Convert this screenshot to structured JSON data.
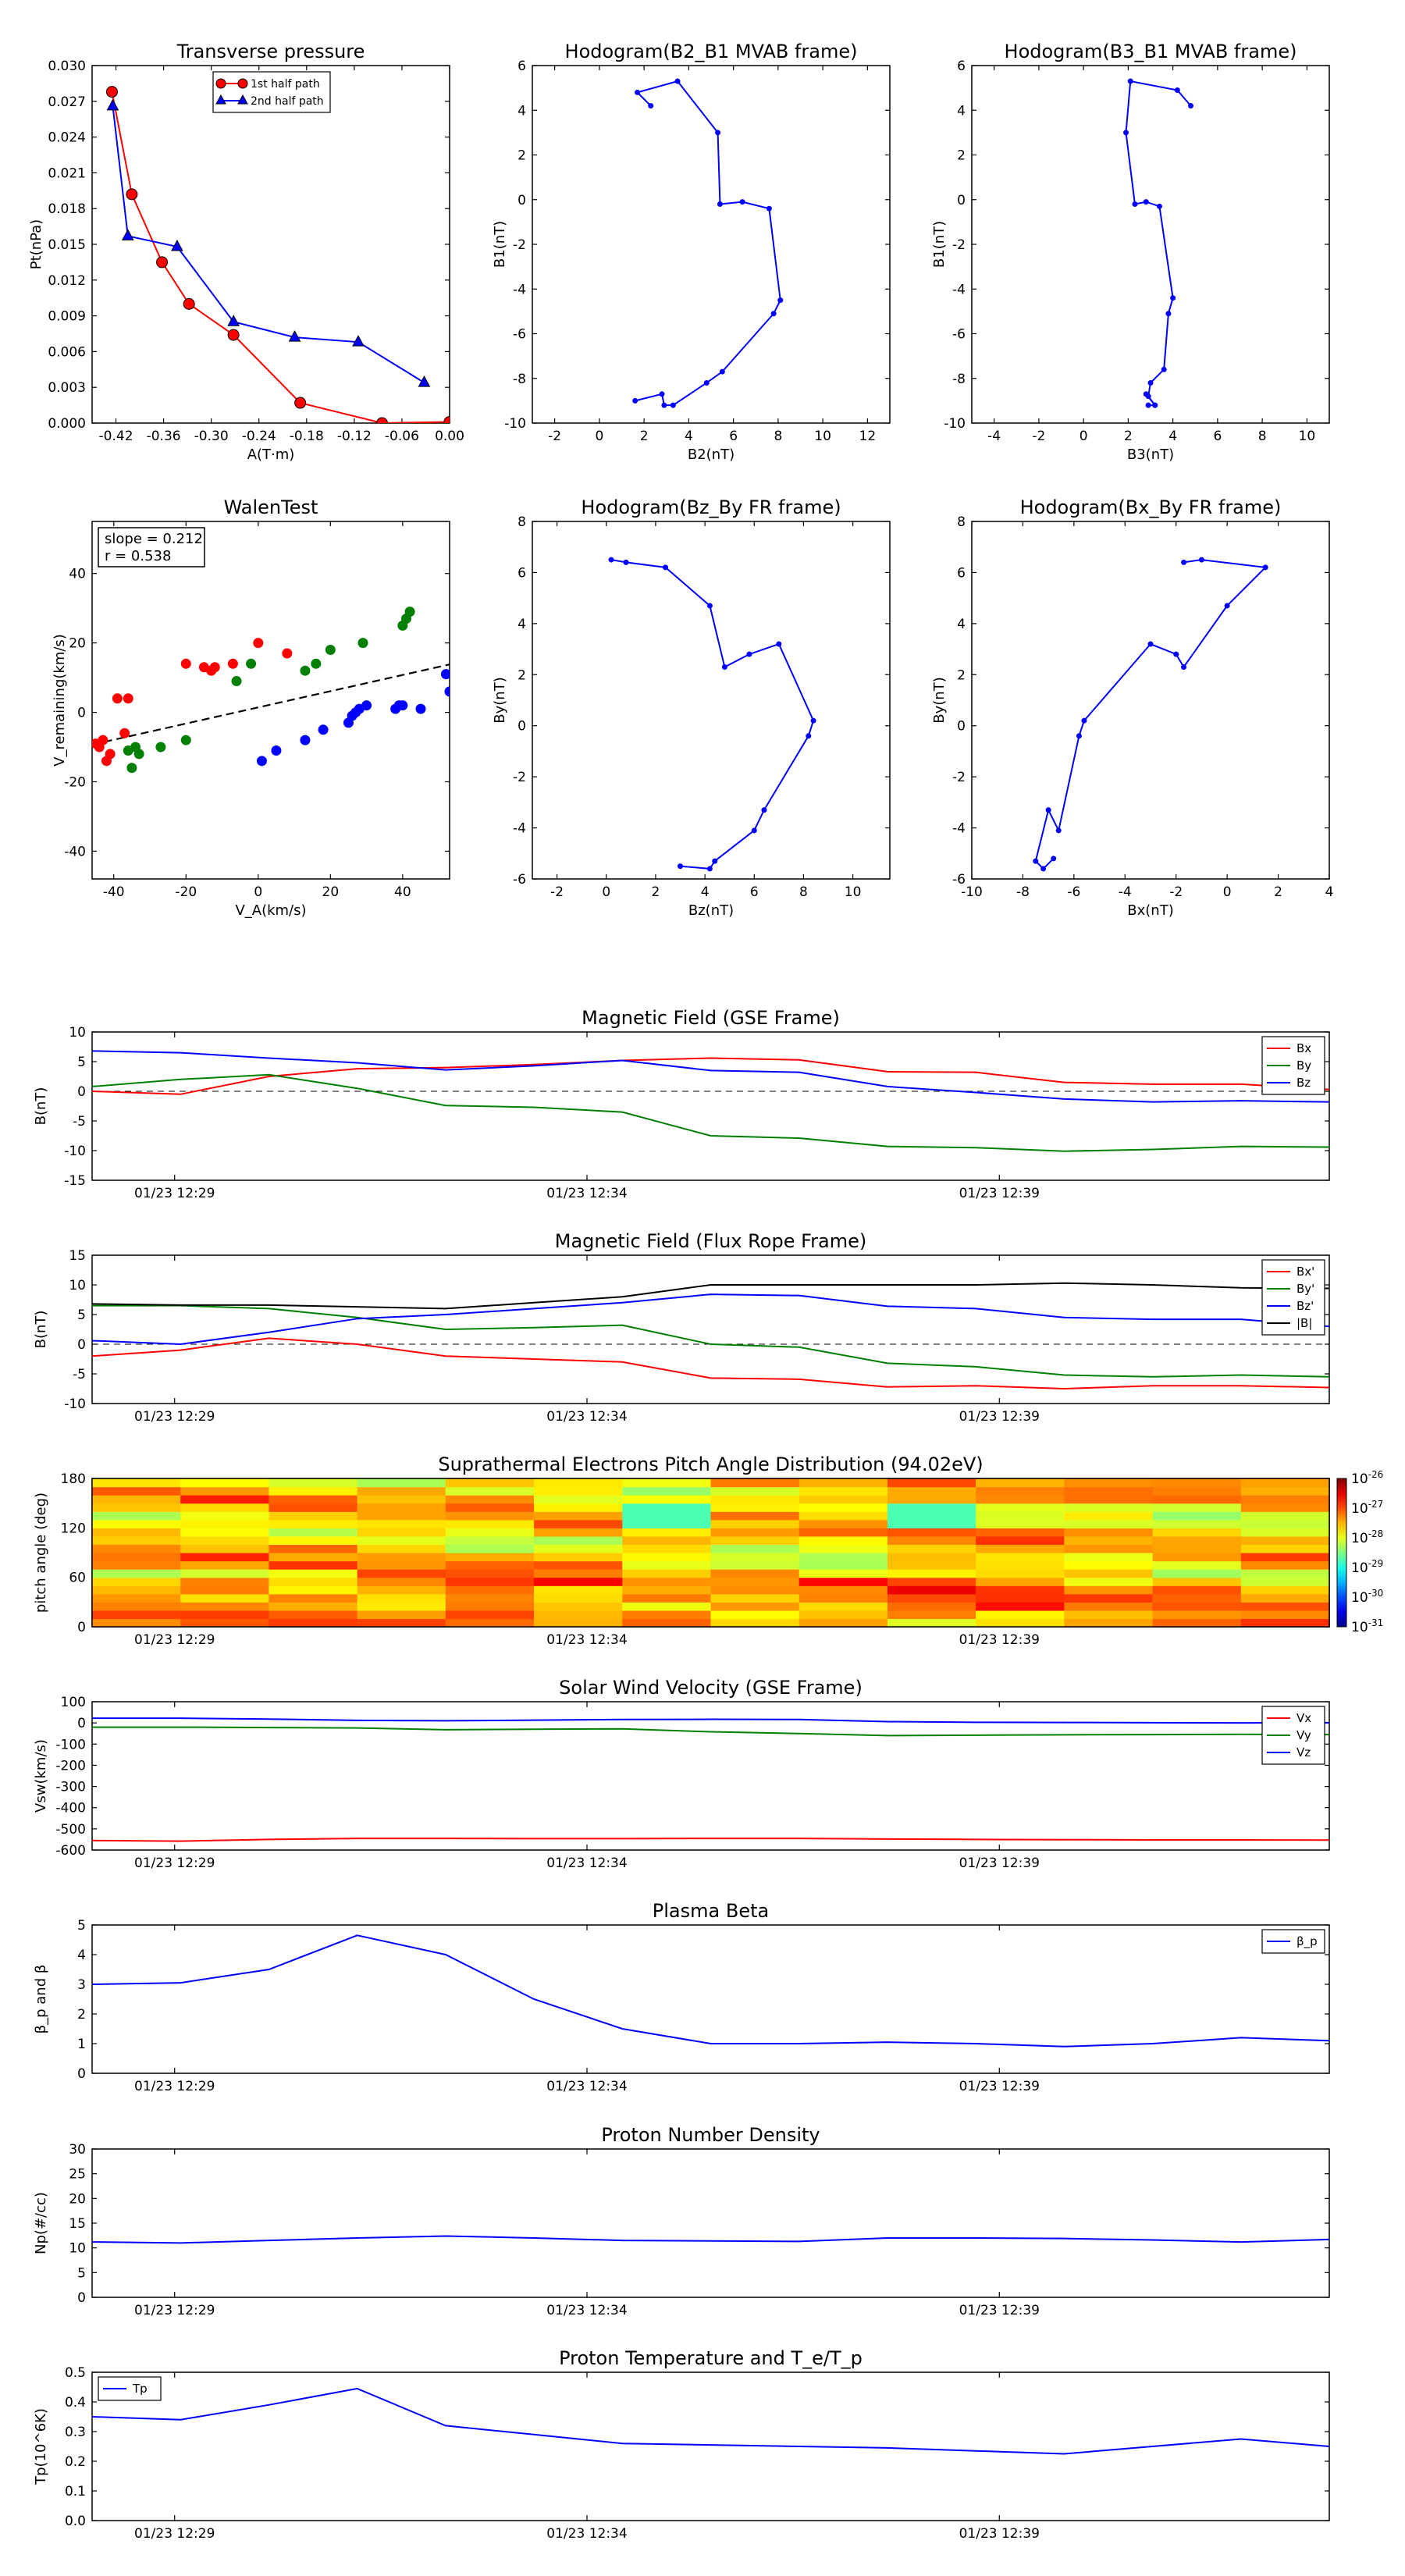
{
  "chart_data": [
    {
      "id": "transverse-pressure",
      "type": "line",
      "title": "Transverse pressure",
      "xlabel": "A(T·m)",
      "ylabel": "Pt(nPa)",
      "xlim": [
        -0.45,
        0.0
      ],
      "ylim": [
        0.0,
        0.03
      ],
      "xticks": [
        -0.42,
        -0.36,
        -0.3,
        -0.24,
        -0.18,
        -0.12,
        -0.06,
        0.0
      ],
      "yticks": [
        0.0,
        0.003,
        0.006,
        0.009,
        0.012,
        0.015,
        0.018,
        0.021,
        0.024,
        0.027,
        0.03
      ],
      "legend_loc": "top-center",
      "series": [
        {
          "name": "1st half path",
          "color": "#ff0000",
          "marker": "circle",
          "x": [
            -0.425,
            -0.4,
            -0.362,
            -0.328,
            -0.272,
            -0.188,
            -0.085,
            0.0
          ],
          "y": [
            0.0278,
            0.0192,
            0.0135,
            0.01,
            0.0074,
            0.0017,
            0.0,
            0.0001
          ]
        },
        {
          "name": "2nd half path",
          "color": "#0000ff",
          "marker": "triangle",
          "x": [
            -0.424,
            -0.405,
            -0.343,
            -0.272,
            -0.195,
            -0.115,
            -0.032
          ],
          "y": [
            0.0266,
            0.0157,
            0.0148,
            0.0085,
            0.0072,
            0.0068,
            0.0034
          ]
        }
      ]
    },
    {
      "id": "hodogram-b2-b1",
      "type": "line",
      "title": "Hodogram(B2_B1 MVAB frame)",
      "xlabel": "B2(nT)",
      "ylabel": "B1(nT)",
      "xlim": [
        -3,
        13
      ],
      "ylim": [
        -10,
        6
      ],
      "xticks": [
        -2,
        0,
        2,
        4,
        6,
        8,
        10,
        12
      ],
      "yticks": [
        -10,
        -8,
        -6,
        -4,
        -2,
        0,
        2,
        4,
        6
      ],
      "series": [
        {
          "name": "hodogram",
          "color": "#0000ff",
          "marker": "dot",
          "x": [
            2.3,
            1.7,
            3.5,
            5.3,
            5.4,
            6.4,
            7.6,
            8.1,
            7.8,
            5.5,
            4.8,
            3.3,
            2.9,
            2.8,
            1.6
          ],
          "y": [
            4.2,
            4.8,
            5.3,
            3.0,
            -0.2,
            -0.1,
            -0.4,
            -4.5,
            -5.1,
            -7.7,
            -8.2,
            -9.2,
            -9.2,
            -8.7,
            -9.0
          ]
        }
      ]
    },
    {
      "id": "hodogram-b3-b1",
      "type": "line",
      "title": "Hodogram(B3_B1 MVAB frame)",
      "xlabel": "B3(nT)",
      "ylabel": "B1(nT)",
      "xlim": [
        -5,
        11
      ],
      "ylim": [
        -10,
        6
      ],
      "xticks": [
        -4,
        -2,
        0,
        2,
        4,
        6,
        8,
        10
      ],
      "yticks": [
        -10,
        -8,
        -6,
        -4,
        -2,
        0,
        2,
        4,
        6
      ],
      "series": [
        {
          "name": "hodogram",
          "color": "#0000ff",
          "marker": "dot",
          "x": [
            4.8,
            4.2,
            2.1,
            1.9,
            2.3,
            2.8,
            3.4,
            4.0,
            3.8,
            3.6,
            3.0,
            2.9,
            3.2,
            2.8,
            3.2,
            2.9
          ],
          "y": [
            4.2,
            4.9,
            5.3,
            3.0,
            -0.2,
            -0.1,
            -0.3,
            -4.4,
            -5.1,
            -7.6,
            -8.2,
            -8.8,
            -9.2,
            -8.7,
            -9.2,
            -9.2
          ]
        }
      ]
    },
    {
      "id": "walen-test",
      "type": "scatter",
      "title": "WalenTest",
      "xlabel": "V_A(km/s)",
      "ylabel": "V_remaining(km/s)",
      "xlim": [
        -46,
        53
      ],
      "ylim": [
        -48,
        55
      ],
      "xticks": [
        -40,
        -20,
        0,
        20,
        40
      ],
      "yticks": [
        -40,
        -20,
        0,
        20,
        40
      ],
      "annotation": {
        "slope": "slope = 0.212",
        "r": "r = 0.538"
      },
      "fit_line": {
        "slope": 0.212,
        "x": [
          -46,
          53
        ],
        "y": [
          -9.3,
          13.8
        ],
        "color": "#000000",
        "style": "dashed"
      },
      "series": [
        {
          "name": "red",
          "color": "#ff0000",
          "x": [
            -45,
            -44,
            -43,
            -42,
            -41,
            -39,
            -37,
            -36,
            -20,
            -15,
            -13,
            -12,
            -7,
            0,
            8
          ],
          "y": [
            -9,
            -10,
            -8,
            -14,
            -12,
            4,
            -6,
            4,
            14,
            13,
            12,
            13,
            14,
            20,
            17
          ]
        },
        {
          "name": "green",
          "color": "#008000",
          "x": [
            -36,
            -35,
            -34,
            -33,
            -27,
            -20,
            -6,
            -2,
            13,
            16,
            20,
            29,
            40,
            41,
            42
          ],
          "y": [
            -11,
            -16,
            -10,
            -12,
            -10,
            -8,
            9,
            14,
            12,
            14,
            18,
            20,
            25,
            27,
            29
          ]
        },
        {
          "name": "blue",
          "color": "#0000ff",
          "x": [
            1,
            5,
            13,
            18,
            25,
            26,
            27,
            28,
            30,
            38,
            39,
            40,
            45,
            52,
            53
          ],
          "y": [
            -14,
            -11,
            -8,
            -5,
            -3,
            -1,
            0,
            1,
            2,
            1,
            2,
            2,
            1,
            11,
            6
          ]
        }
      ]
    },
    {
      "id": "hodogram-bz-by",
      "type": "line",
      "title": "Hodogram(Bz_By FR frame)",
      "xlabel": "Bz(nT)",
      "ylabel": "By(nT)",
      "xlim": [
        -3,
        11.5
      ],
      "ylim": [
        -6,
        8
      ],
      "xticks": [
        -2,
        0,
        2,
        4,
        6,
        8,
        10
      ],
      "yticks": [
        -6,
        -4,
        -2,
        0,
        2,
        4,
        6,
        8
      ],
      "series": [
        {
          "name": "hodogram",
          "color": "#0000ff",
          "marker": "dot",
          "x": [
            0.2,
            0.8,
            2.4,
            4.2,
            4.8,
            5.8,
            7.0,
            8.4,
            8.2,
            6.4,
            6.0,
            4.4,
            4.2,
            3.0
          ],
          "y": [
            6.5,
            6.4,
            6.2,
            4.7,
            2.3,
            2.8,
            3.2,
            0.2,
            -0.4,
            -3.3,
            -4.1,
            -5.3,
            -5.6,
            -5.5
          ]
        }
      ]
    },
    {
      "id": "hodogram-bx-by",
      "type": "line",
      "title": "Hodogram(Bx_By FR frame)",
      "xlabel": "Bx(nT)",
      "ylabel": "By(nT)",
      "xlim": [
        -10,
        4
      ],
      "ylim": [
        -6,
        8
      ],
      "xticks": [
        -10,
        -8,
        -6,
        -4,
        -2,
        0,
        2,
        4
      ],
      "yticks": [
        -6,
        -4,
        -2,
        0,
        2,
        4,
        6,
        8
      ],
      "series": [
        {
          "name": "hodogram",
          "color": "#0000ff",
          "marker": "dot",
          "x": [
            -1.7,
            -1.0,
            1.5,
            0.0,
            -1.7,
            -2.0,
            -3.0,
            -5.6,
            -5.8,
            -6.6,
            -7.0,
            -7.5,
            -7.2,
            -6.8
          ],
          "y": [
            6.4,
            6.5,
            6.2,
            4.7,
            2.3,
            2.8,
            3.2,
            0.2,
            -0.4,
            -4.1,
            -3.3,
            -5.3,
            -5.6,
            -5.2
          ]
        }
      ]
    },
    {
      "id": "magnetic-field-gse",
      "type": "line",
      "title": "Magnetic Field (GSE Frame)",
      "ylabel": "B(nT)",
      "ylim": [
        -15,
        10
      ],
      "yticks": [
        -15,
        -10,
        -5,
        0,
        5,
        10
      ],
      "xticklabels": [
        "01/23 12:29",
        "01/23 12:34",
        "01/23 12:39"
      ],
      "zero_line": true,
      "legend_loc": "top-right",
      "series": [
        {
          "name": "Bx",
          "color": "#ff0000",
          "values": [
            0.0,
            -0.5,
            2.5,
            3.8,
            4.0,
            4.5,
            5.2,
            5.6,
            5.3,
            3.3,
            3.2,
            1.5,
            1.2,
            1.2,
            0.3
          ]
        },
        {
          "name": "By",
          "color": "#008000",
          "values": [
            0.8,
            2.0,
            2.8,
            0.5,
            -2.4,
            -2.7,
            -3.5,
            -7.5,
            -7.9,
            -9.3,
            -9.5,
            -10.1,
            -9.8,
            -9.3,
            -9.4
          ]
        },
        {
          "name": "Bz",
          "color": "#0000ff",
          "values": [
            6.8,
            6.5,
            5.6,
            4.8,
            3.6,
            4.3,
            5.2,
            3.5,
            3.2,
            0.8,
            -0.2,
            -1.3,
            -1.8,
            -1.6,
            -1.8
          ]
        }
      ]
    },
    {
      "id": "magnetic-field-flux-rope",
      "type": "line",
      "title": "Magnetic Field (Flux Rope Frame)",
      "ylabel": "B(nT)",
      "ylim": [
        -10,
        15
      ],
      "yticks": [
        -10,
        -5,
        0,
        5,
        10,
        15
      ],
      "xticklabels": [
        "01/23 12:29",
        "01/23 12:34",
        "01/23 12:39"
      ],
      "zero_line": true,
      "legend_loc": "top-right",
      "series": [
        {
          "name": "Bx'",
          "color": "#ff0000",
          "values": [
            -2.0,
            -1.0,
            1.0,
            0.0,
            -2.0,
            -2.5,
            -3.0,
            -5.7,
            -5.9,
            -7.2,
            -7.0,
            -7.5,
            -7.0,
            -7.0,
            -7.3
          ]
        },
        {
          "name": "By'",
          "color": "#008000",
          "values": [
            6.5,
            6.5,
            6.0,
            4.5,
            2.5,
            2.8,
            3.2,
            0.0,
            -0.5,
            -3.2,
            -3.8,
            -5.2,
            -5.5,
            -5.2,
            -5.5
          ]
        },
        {
          "name": "Bz'",
          "color": "#0000ff",
          "values": [
            0.6,
            0.0,
            2.0,
            4.3,
            5.0,
            6.0,
            7.0,
            8.4,
            8.2,
            6.4,
            6.0,
            4.5,
            4.2,
            4.2,
            3.0
          ]
        },
        {
          "name": "|B|",
          "color": "#000000",
          "values": [
            6.8,
            6.6,
            6.6,
            6.3,
            6.0,
            7.0,
            8.0,
            10.0,
            10.0,
            10.0,
            10.0,
            10.3,
            10.0,
            9.5,
            9.4
          ]
        }
      ]
    },
    {
      "id": "pitch-angle-distribution",
      "type": "heatmap",
      "title": "Suprathermal Electrons Pitch Angle Distribution (94.02eV)",
      "ylabel": "pitch angle (deg)",
      "ylim": [
        0,
        180
      ],
      "yticks": [
        0,
        60,
        120,
        180
      ],
      "xticklabels": [
        "01/23 12:29",
        "01/23 12:34",
        "01/23 12:39"
      ],
      "colorbar_labels": [
        "10",
        "10",
        "10",
        "10",
        "10",
        "10"
      ],
      "colorbar_exponents": [
        "-26",
        "-27",
        "-28",
        "-29",
        "-30",
        "-31"
      ],
      "colorbar_range_log10": [
        -31,
        -26
      ],
      "columns": 14,
      "rows": 18
    },
    {
      "id": "solar-wind-velocity",
      "type": "line",
      "title": "Solar Wind Velocity (GSE Frame)",
      "ylabel": "Vsw(km/s)",
      "ylim": [
        -600,
        100
      ],
      "yticks": [
        -600,
        -500,
        -400,
        -300,
        -200,
        -100,
        0,
        100
      ],
      "xticklabels": [
        "01/23 12:29",
        "01/23 12:34",
        "01/23 12:39"
      ],
      "legend_loc": "top-right",
      "series": [
        {
          "name": "Vx",
          "color": "#ff0000",
          "values": [
            -555,
            -558,
            -550,
            -545,
            -545,
            -546,
            -546,
            -545,
            -545,
            -548,
            -550,
            -551,
            -552,
            -552,
            -553
          ]
        },
        {
          "name": "Vy",
          "color": "#008000",
          "values": [
            -20,
            -20,
            -22,
            -24,
            -32,
            -30,
            -28,
            -42,
            -50,
            -60,
            -58,
            -56,
            -55,
            -54,
            -55
          ]
        },
        {
          "name": "Vz",
          "color": "#0000ff",
          "values": [
            22,
            22,
            18,
            12,
            10,
            13,
            16,
            17,
            16,
            6,
            3,
            2,
            1,
            0,
            1
          ]
        }
      ]
    },
    {
      "id": "plasma-beta",
      "type": "line",
      "title": "Plasma Beta",
      "ylabel": "β_p and β",
      "ylim": [
        0,
        5
      ],
      "yticks": [
        0,
        1,
        2,
        3,
        4,
        5
      ],
      "xticklabels": [
        "01/23 12:29",
        "01/23 12:34",
        "01/23 12:39"
      ],
      "legend_loc": "top-right",
      "series": [
        {
          "name": "β_p",
          "color": "#0000ff",
          "values": [
            3.0,
            3.05,
            3.5,
            4.65,
            4.0,
            2.5,
            1.5,
            1.0,
            1.0,
            1.05,
            1.0,
            0.9,
            1.0,
            1.2,
            1.1
          ]
        }
      ]
    },
    {
      "id": "proton-number-density",
      "type": "line",
      "title": "Proton Number Density",
      "ylabel": "Np(#/cc)",
      "ylim": [
        0,
        30
      ],
      "yticks": [
        0,
        5,
        10,
        15,
        20,
        25,
        30
      ],
      "xticklabels": [
        "01/23 12:29",
        "01/23 12:34",
        "01/23 12:39"
      ],
      "series": [
        {
          "name": "Np",
          "color": "#0000ff",
          "values": [
            11.2,
            11.0,
            11.5,
            12.0,
            12.4,
            12.0,
            11.5,
            11.4,
            11.3,
            12.0,
            12.0,
            11.9,
            11.6,
            11.2,
            11.7
          ]
        }
      ]
    },
    {
      "id": "proton-temperature",
      "type": "line",
      "title": "Proton Temperature and T_e/T_p",
      "ylabel": "Tp(10^6K)",
      "ylim": [
        0,
        0.5
      ],
      "yticks": [
        0.0,
        0.1,
        0.2,
        0.3,
        0.4,
        0.5
      ],
      "xticklabels": [
        "01/23 12:29",
        "01/23 12:34",
        "01/23 12:39"
      ],
      "legend_loc": "top-left",
      "series": [
        {
          "name": "Tp",
          "color": "#0000ff",
          "values": [
            0.35,
            0.34,
            0.39,
            0.445,
            0.32,
            0.29,
            0.26,
            0.255,
            0.25,
            0.245,
            0.235,
            0.225,
            0.25,
            0.275,
            0.25
          ]
        }
      ]
    }
  ]
}
